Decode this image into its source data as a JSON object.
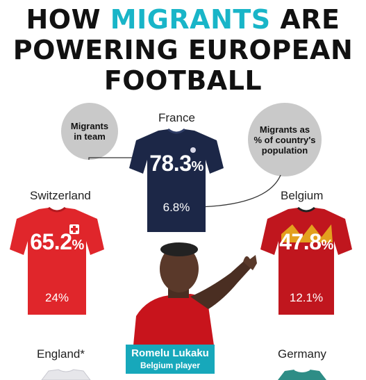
{
  "title": {
    "line1_pre": "HOW ",
    "line1_accent": "MIGRANTS",
    "line1_post": " ARE",
    "line2": "POWERING EUROPEAN",
    "line3": "FOOTBALL"
  },
  "colors": {
    "accent": "#19b5c8",
    "france": "#1c2747",
    "switzerland": "#e0262b",
    "belgium": "#c0161e",
    "caption": "#17a8bb"
  },
  "legend": {
    "team_bubble": "Migrants\nin team",
    "population_bubble": "Migrants as\n% of country's\npopulation"
  },
  "countries": [
    {
      "name": "France",
      "team_pct": "78.3",
      "team_suffix": "%",
      "population_pct": "6.8%"
    },
    {
      "name": "Switzerland",
      "team_pct": "65.2",
      "team_suffix": "%",
      "population_pct": "24%"
    },
    {
      "name": "Belgium",
      "team_pct": "47.8",
      "team_suffix": "%",
      "population_pct": "12.1%"
    },
    {
      "name": "England*"
    },
    {
      "name": "Germany"
    }
  ],
  "player": {
    "name": "Romelu Lukaku",
    "role": "Belgium player"
  }
}
